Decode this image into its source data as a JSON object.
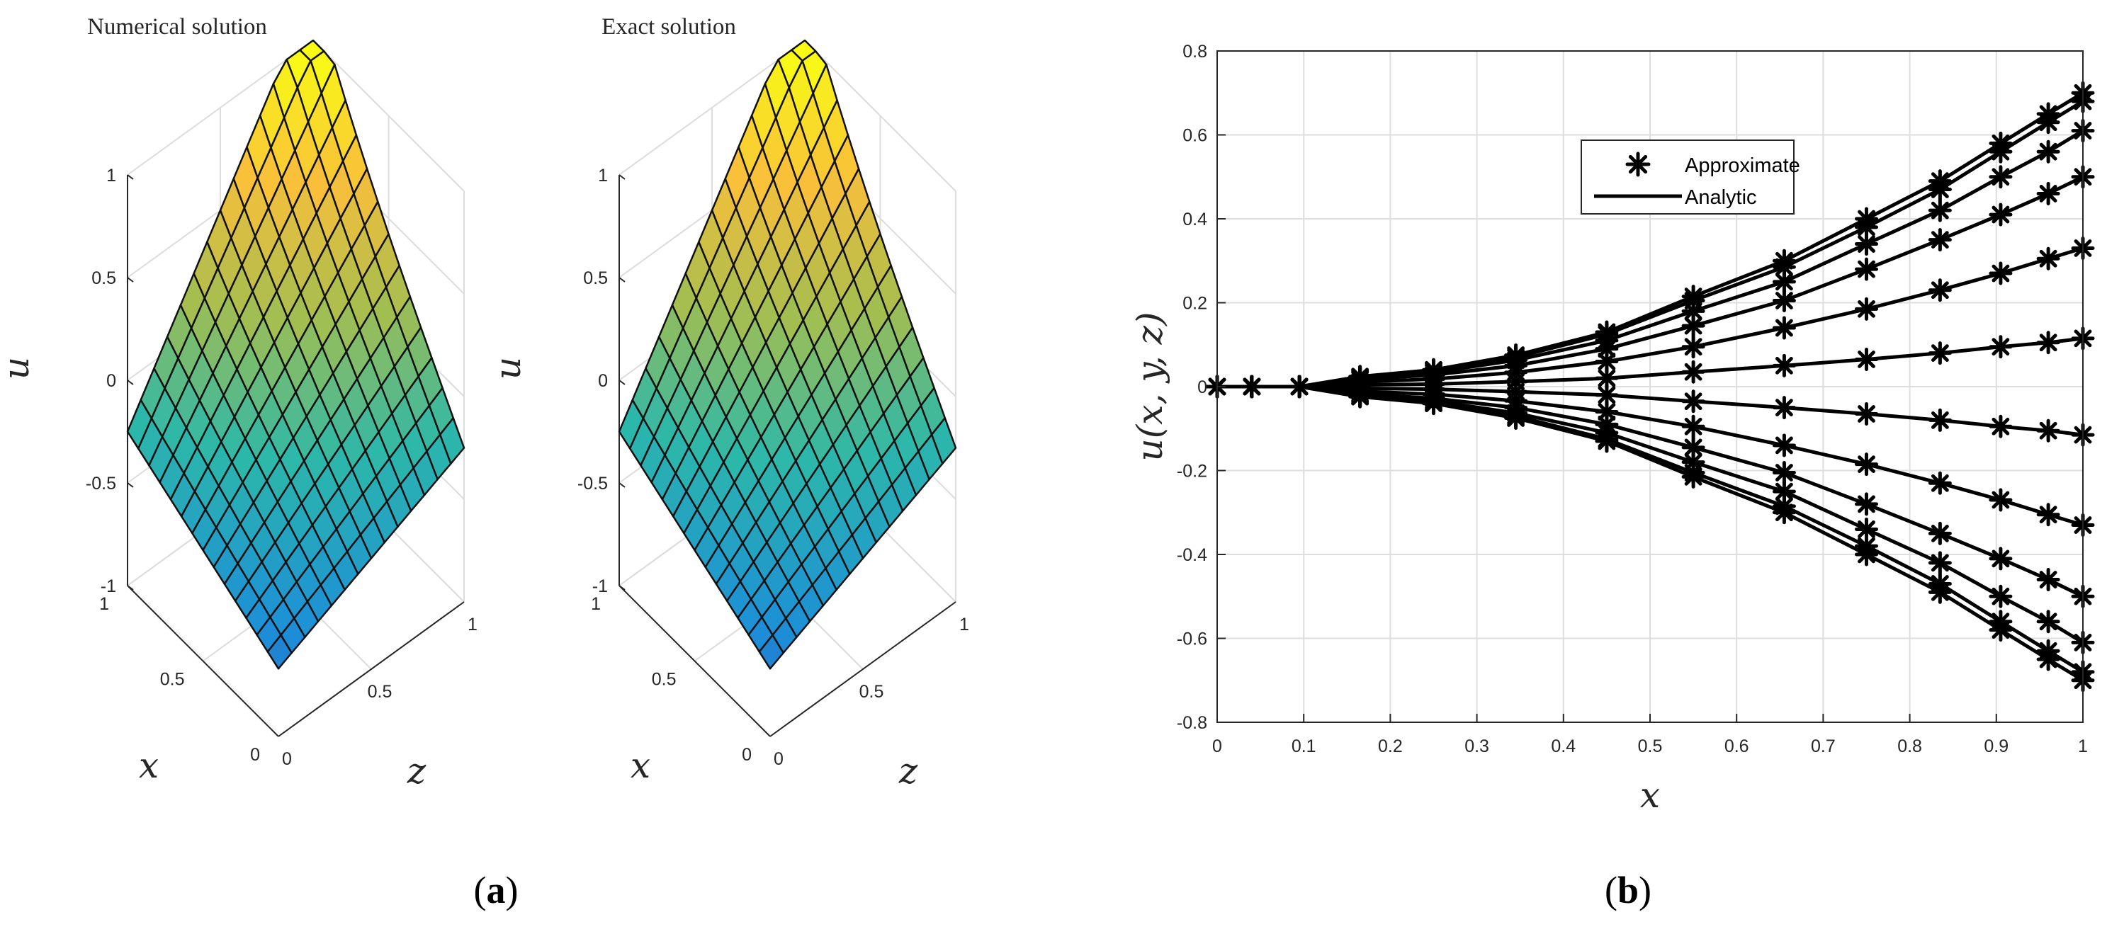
{
  "panels": {
    "a": {
      "caption_letter": "a",
      "surfaces": [
        {
          "title": "Numerical solution",
          "zlabel": "u",
          "xlabel": "x",
          "ylabel": "z"
        },
        {
          "title": "Exact solution",
          "zlabel": "u",
          "xlabel": "x",
          "ylabel": "z"
        }
      ],
      "z_ticks": [
        "1",
        "0.5",
        "0",
        "-0.5",
        "-1"
      ],
      "x_ticks": [
        "1",
        "0.5",
        "0"
      ],
      "y_ticks": [
        "0",
        "0.5",
        "1"
      ]
    },
    "b": {
      "caption_letter": "b"
    }
  },
  "chart_data": [
    {
      "type": "surface",
      "title": "Numerical solution",
      "xlabel": "x",
      "ylabel": "z",
      "zlabel": "u",
      "xlim": [
        0,
        1
      ],
      "ylim": [
        0,
        1
      ],
      "zlim": [
        -1,
        1
      ],
      "grid": true,
      "colormap": [
        "#3e26a8",
        "#1c8fd8",
        "#2db8a9",
        "#a5be4f",
        "#f9bf3b",
        "#f9fb15"
      ]
    },
    {
      "type": "surface",
      "title": "Exact solution",
      "xlabel": "x",
      "ylabel": "z",
      "zlabel": "u",
      "xlim": [
        0,
        1
      ],
      "ylim": [
        0,
        1
      ],
      "zlim": [
        -1,
        1
      ],
      "grid": true,
      "colormap": [
        "#3e26a8",
        "#1c8fd8",
        "#2db8a9",
        "#a5be4f",
        "#f9bf3b",
        "#f9fb15"
      ]
    },
    {
      "type": "line",
      "xlabel": "x",
      "ylabel": "u(x,y,z)",
      "xlim": [
        0,
        1
      ],
      "ylim": [
        -0.8,
        0.8
      ],
      "x_ticks": [
        "0",
        "0.1",
        "0.2",
        "0.3",
        "0.4",
        "0.5",
        "0.6",
        "0.7",
        "0.8",
        "0.9",
        "1"
      ],
      "y_ticks": [
        "-0.8",
        "-0.6",
        "-0.4",
        "-0.2",
        "0",
        "0.2",
        "0.4",
        "0.6",
        "0.8"
      ],
      "grid": true,
      "legend": {
        "position": "top-center",
        "entries": [
          "Approximate",
          "Analytic"
        ]
      },
      "x": [
        0,
        0.04,
        0.095,
        0.165,
        0.25,
        0.345,
        0.45,
        0.55,
        0.655,
        0.75,
        0.835,
        0.905,
        0.96,
        1.0
      ],
      "series": [
        {
          "values": [
            0,
            0,
            0,
            0.024,
            0.04,
            0.075,
            0.13,
            0.215,
            0.3,
            0.4,
            0.49,
            0.58,
            0.65,
            0.7
          ]
        },
        {
          "values": [
            0,
            0,
            0,
            0.023,
            0.038,
            0.07,
            0.125,
            0.205,
            0.285,
            0.38,
            0.47,
            0.56,
            0.63,
            0.68
          ]
        },
        {
          "values": [
            0,
            0,
            0,
            0.02,
            0.034,
            0.063,
            0.11,
            0.18,
            0.25,
            0.34,
            0.42,
            0.5,
            0.56,
            0.61
          ]
        },
        {
          "values": [
            0,
            0,
            0,
            0.017,
            0.028,
            0.05,
            0.09,
            0.145,
            0.205,
            0.28,
            0.35,
            0.41,
            0.46,
            0.5
          ]
        },
        {
          "values": [
            0,
            0,
            0,
            0.011,
            0.018,
            0.034,
            0.06,
            0.095,
            0.14,
            0.185,
            0.23,
            0.27,
            0.305,
            0.33
          ]
        },
        {
          "values": [
            0,
            0,
            0,
            0.004,
            0.006,
            0.012,
            0.02,
            0.035,
            0.05,
            0.065,
            0.08,
            0.095,
            0.105,
            0.115
          ]
        },
        {
          "values": [
            0,
            0,
            0,
            -0.004,
            -0.006,
            -0.012,
            -0.02,
            -0.035,
            -0.05,
            -0.065,
            -0.08,
            -0.095,
            -0.105,
            -0.115
          ]
        },
        {
          "values": [
            0,
            0,
            0,
            -0.011,
            -0.018,
            -0.034,
            -0.06,
            -0.095,
            -0.14,
            -0.185,
            -0.23,
            -0.27,
            -0.305,
            -0.33
          ]
        },
        {
          "values": [
            0,
            0,
            0,
            -0.017,
            -0.028,
            -0.05,
            -0.09,
            -0.145,
            -0.205,
            -0.28,
            -0.35,
            -0.41,
            -0.46,
            -0.5
          ]
        },
        {
          "values": [
            0,
            0,
            0,
            -0.02,
            -0.034,
            -0.063,
            -0.11,
            -0.18,
            -0.25,
            -0.34,
            -0.42,
            -0.5,
            -0.56,
            -0.61
          ]
        },
        {
          "values": [
            0,
            0,
            0,
            -0.023,
            -0.038,
            -0.07,
            -0.125,
            -0.205,
            -0.285,
            -0.38,
            -0.47,
            -0.56,
            -0.63,
            -0.68
          ]
        },
        {
          "values": [
            0,
            0,
            0,
            -0.024,
            -0.04,
            -0.075,
            -0.13,
            -0.215,
            -0.3,
            -0.4,
            -0.49,
            -0.58,
            -0.65,
            -0.7
          ]
        }
      ]
    }
  ]
}
